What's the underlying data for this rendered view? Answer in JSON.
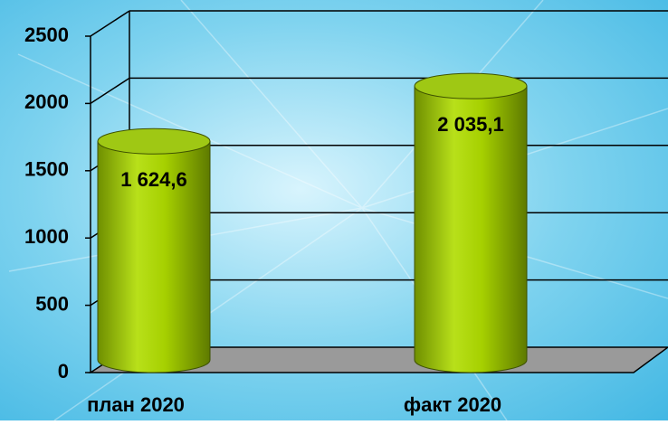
{
  "chart_data": {
    "type": "bar",
    "categories": [
      "план 2020",
      "факт 2020"
    ],
    "values": [
      1624.6,
      2035.1
    ],
    "value_labels": [
      "1 624,6",
      "2 035,1"
    ],
    "color": "#99cc00",
    "ylim": [
      0,
      2500
    ],
    "yticks": [
      0,
      500,
      1000,
      1500,
      2000,
      2500
    ],
    "grid": true
  }
}
